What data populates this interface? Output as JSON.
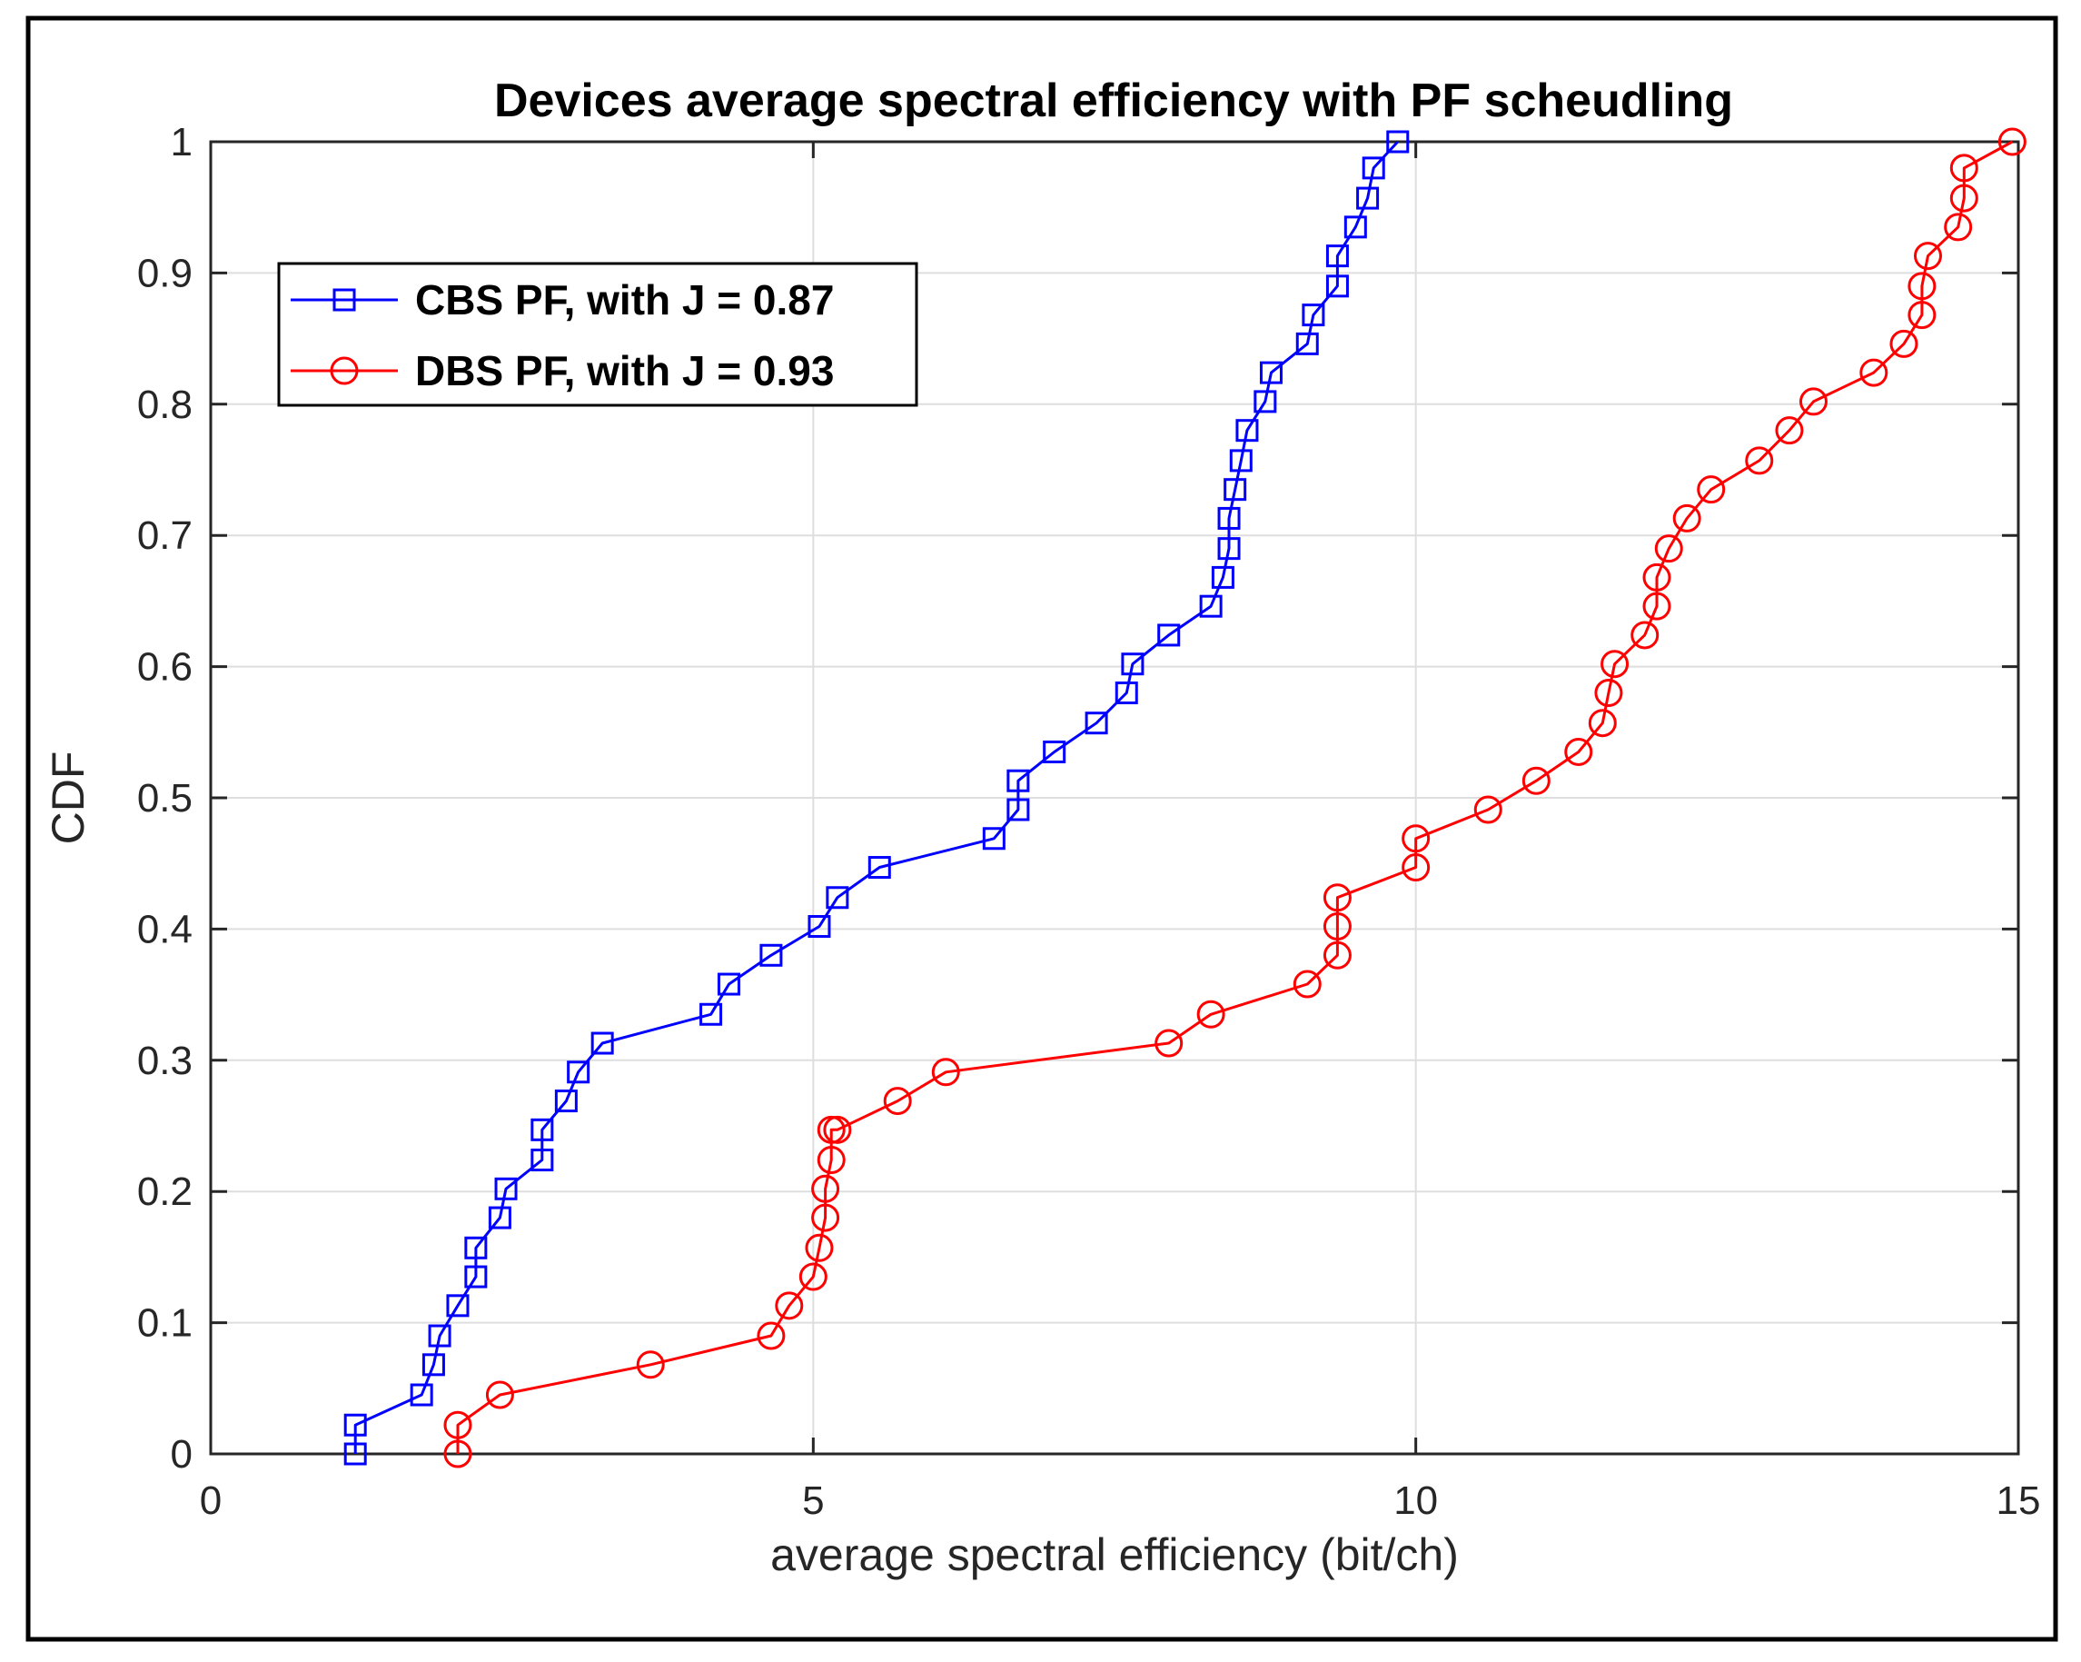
{
  "chart_data": {
    "type": "line",
    "title": "Devices average spectral efficiency with PF scheudling",
    "xlabel": "average spectral efficiency (bit/ch)",
    "ylabel": "CDF",
    "xlim": [
      0,
      15
    ],
    "ylim": [
      0,
      1
    ],
    "xticks": [
      "0",
      "5",
      "10",
      "15"
    ],
    "yticks": [
      "0",
      "0.1",
      "0.2",
      "0.3",
      "0.4",
      "0.5",
      "0.6",
      "0.7",
      "0.8",
      "0.9",
      "1"
    ],
    "grid": true,
    "legend_position": "top-left",
    "series": [
      {
        "name": "CBS PF, with J = 0.87",
        "color": "#0000ff",
        "marker": "square",
        "x": [
          1.2,
          1.2,
          1.75,
          1.85,
          1.9,
          2.05,
          2.2,
          2.2,
          2.4,
          2.45,
          2.75,
          2.75,
          2.95,
          3.05,
          3.25,
          4.15,
          4.3,
          4.65,
          5.05,
          5.2,
          5.55,
          6.5,
          6.7,
          6.7,
          7.0,
          7.35,
          7.6,
          7.65,
          7.95,
          8.3,
          8.4,
          8.45,
          8.45,
          8.5,
          8.55,
          8.6,
          8.75,
          8.8,
          9.1,
          9.15,
          9.35,
          9.35,
          9.5,
          9.6,
          9.65,
          9.85
        ],
        "y": [
          0.0,
          0.022,
          0.045,
          0.068,
          0.09,
          0.113,
          0.135,
          0.157,
          0.18,
          0.202,
          0.224,
          0.247,
          0.269,
          0.291,
          0.313,
          0.335,
          0.358,
          0.38,
          0.402,
          0.424,
          0.447,
          0.469,
          0.491,
          0.513,
          0.535,
          0.557,
          0.58,
          0.602,
          0.624,
          0.646,
          0.668,
          0.69,
          0.713,
          0.735,
          0.757,
          0.78,
          0.802,
          0.824,
          0.846,
          0.868,
          0.89,
          0.913,
          0.935,
          0.957,
          0.98,
          1.0
        ]
      },
      {
        "name": "DBS PF, with J = 0.93",
        "color": "#ff0000",
        "marker": "circle",
        "x": [
          2.05,
          2.05,
          2.4,
          3.65,
          4.65,
          4.8,
          5.0,
          5.05,
          5.1,
          5.1,
          5.15,
          5.15,
          5.2,
          5.7,
          6.1,
          7.95,
          8.3,
          9.1,
          9.35,
          9.35,
          9.35,
          10.0,
          10.0,
          10.6,
          11.0,
          11.35,
          11.55,
          11.6,
          11.65,
          11.9,
          12.0,
          12.0,
          12.1,
          12.25,
          12.45,
          12.85,
          13.1,
          13.3,
          13.8,
          14.05,
          14.2,
          14.2,
          14.25,
          14.5,
          14.55,
          14.55,
          14.95
        ],
        "y": [
          0.0,
          0.022,
          0.045,
          0.068,
          0.09,
          0.113,
          0.135,
          0.157,
          0.18,
          0.202,
          0.224,
          0.247,
          0.247,
          0.269,
          0.291,
          0.313,
          0.335,
          0.358,
          0.38,
          0.402,
          0.424,
          0.447,
          0.469,
          0.491,
          0.513,
          0.535,
          0.557,
          0.58,
          0.602,
          0.624,
          0.646,
          0.668,
          0.69,
          0.713,
          0.735,
          0.757,
          0.78,
          0.802,
          0.824,
          0.846,
          0.868,
          0.89,
          0.913,
          0.935,
          0.957,
          0.98,
          1.0
        ]
      }
    ]
  }
}
